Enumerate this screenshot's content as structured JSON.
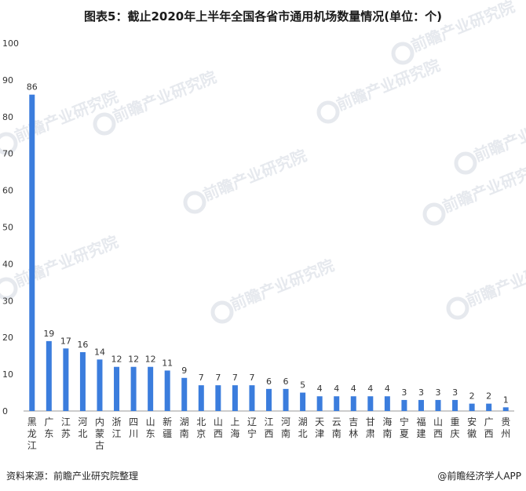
{
  "title": "图表5：截止2020年上半年全国各省市通用机场数量情况(单位：个)",
  "source": "资料来源：前瞻产业研究院整理",
  "credit": "@前瞻经济学人APP",
  "watermark": "前瞻产业研究院",
  "colors": {
    "bar": "#3b7ddd",
    "axis": "#999999"
  },
  "chart_data": {
    "type": "bar",
    "title": "图表5：截止2020年上半年全国各省市通用机场数量情况(单位：个)",
    "xlabel": "",
    "ylabel": "",
    "ylim": [
      0,
      100
    ],
    "yticks": [
      0,
      10,
      20,
      30,
      40,
      50,
      60,
      70,
      80,
      90,
      100
    ],
    "grid": false,
    "categories": [
      "黑龙江",
      "广东",
      "江苏",
      "河北",
      "内蒙古",
      "浙江",
      "四川",
      "山东",
      "新疆",
      "湖南",
      "北京",
      "山西",
      "上海",
      "辽宁",
      "江西",
      "河南",
      "湖北",
      "天津",
      "云南",
      "吉林",
      "甘肃",
      "海南",
      "宁夏",
      "福建",
      "山西",
      "重庆",
      "安徽",
      "广西",
      "贵州"
    ],
    "values": [
      86,
      19,
      17,
      16,
      14,
      12,
      12,
      12,
      11,
      9,
      7,
      7,
      7,
      7,
      6,
      6,
      5,
      4,
      4,
      4,
      4,
      4,
      3,
      3,
      3,
      3,
      2,
      2,
      1
    ]
  }
}
